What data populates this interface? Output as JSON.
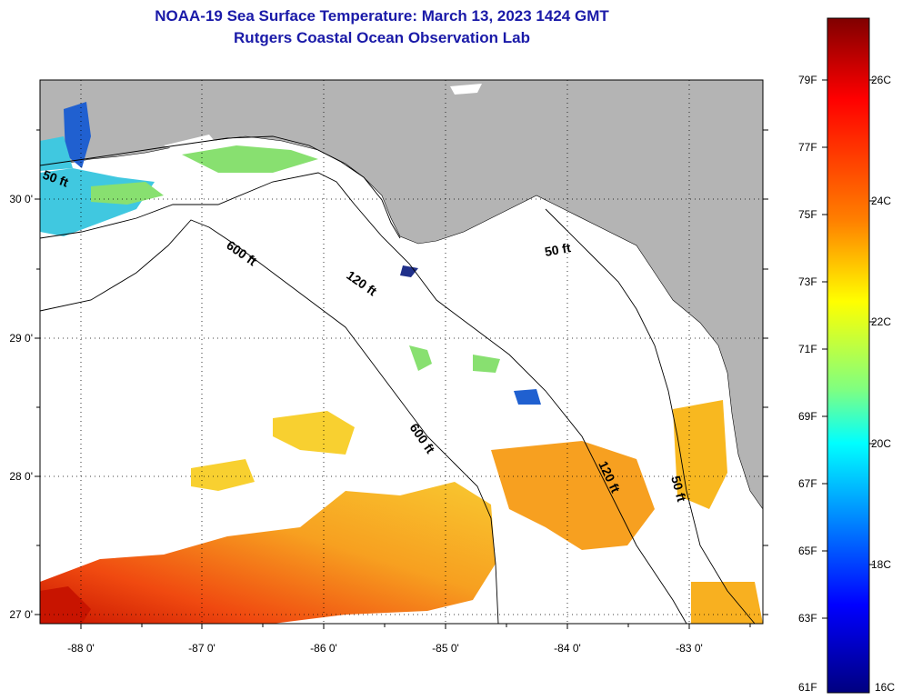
{
  "title_line1": "NOAA-19 Sea Surface Temperature:  March 13, 2023 1424 GMT",
  "title_line2": "Rutgers Coastal Ocean Observation Lab",
  "map": {
    "lon_ticks": [
      "-88 0'",
      "-87 0'",
      "-86 0'",
      "-85 0'",
      "-84 0'",
      "-83 0'"
    ],
    "lat_ticks": [
      "30 0'",
      "29 0'",
      "28 0'",
      "27 0'"
    ],
    "contour_labels": [
      "50 ft",
      "600 ft",
      "120 ft",
      "50 ft",
      "600 ft",
      "120 ft",
      "50 ft"
    ],
    "colors": {
      "land": "#b4b4b4",
      "cloud": "#ffffff",
      "contour": "#000000",
      "grid": "#000000"
    }
  },
  "colorbar": {
    "fahrenheit_labels": [
      "79F",
      "77F",
      "75F",
      "73F",
      "71F",
      "69F",
      "67F",
      "65F",
      "63F",
      "61F"
    ],
    "celsius_labels": [
      "26C",
      "24C",
      "22C",
      "20C",
      "18C",
      "16C"
    ],
    "colors": [
      "#800000",
      "#ff0000",
      "#ff8000",
      "#ffff00",
      "#80ff80",
      "#00ffff",
      "#0080ff",
      "#0000ff",
      "#000080"
    ]
  }
}
